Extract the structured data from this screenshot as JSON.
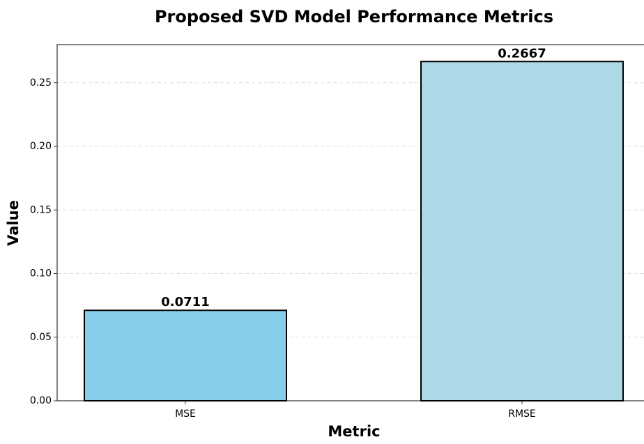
{
  "chart_data": {
    "type": "bar",
    "title": "Proposed SVD Model Performance Metrics",
    "xlabel": "Metric",
    "ylabel": "Value",
    "categories": [
      "MSE",
      "RMSE"
    ],
    "values": [
      0.0711,
      0.2667
    ],
    "colors": [
      "#87ceeb",
      "#add8e6"
    ],
    "ylim": [
      0,
      0.28
    ],
    "yticks": [
      {
        "value": 0,
        "label": "0.00"
      },
      {
        "value": 0.05,
        "label": "0.05"
      },
      {
        "value": 0.1,
        "label": "0.10"
      },
      {
        "value": 0.15,
        "label": "0.15"
      },
      {
        "value": 0.2,
        "label": "0.20"
      },
      {
        "value": 0.25,
        "label": "0.25"
      }
    ],
    "grid": true
  }
}
